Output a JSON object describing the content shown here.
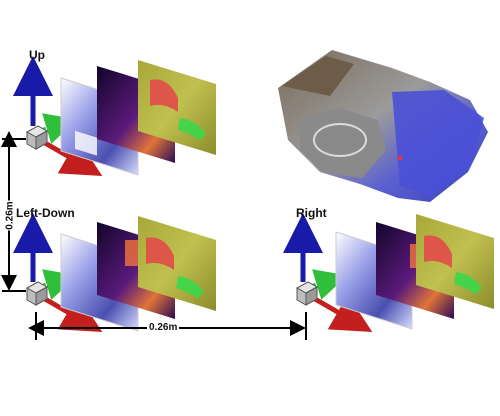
{
  "labels": {
    "up": "Up",
    "left_down": "Left-Down",
    "right": "Right",
    "vertical_distance": "0.26m",
    "horizontal_distance": "0.26m"
  },
  "colors": {
    "axis_up": "#1a1aa8",
    "axis_forward": "#c41f1f",
    "axis_side": "#2fbf3a",
    "cube": "#c9c9c9",
    "dimension_lines": "#000000",
    "panel_rgb": "#6f72c8",
    "panel_depth": "#2a1550",
    "panel_semantic": "#b6b641"
  },
  "icons": {
    "camera_rig": "cube-with-xyz-axes-icon"
  }
}
